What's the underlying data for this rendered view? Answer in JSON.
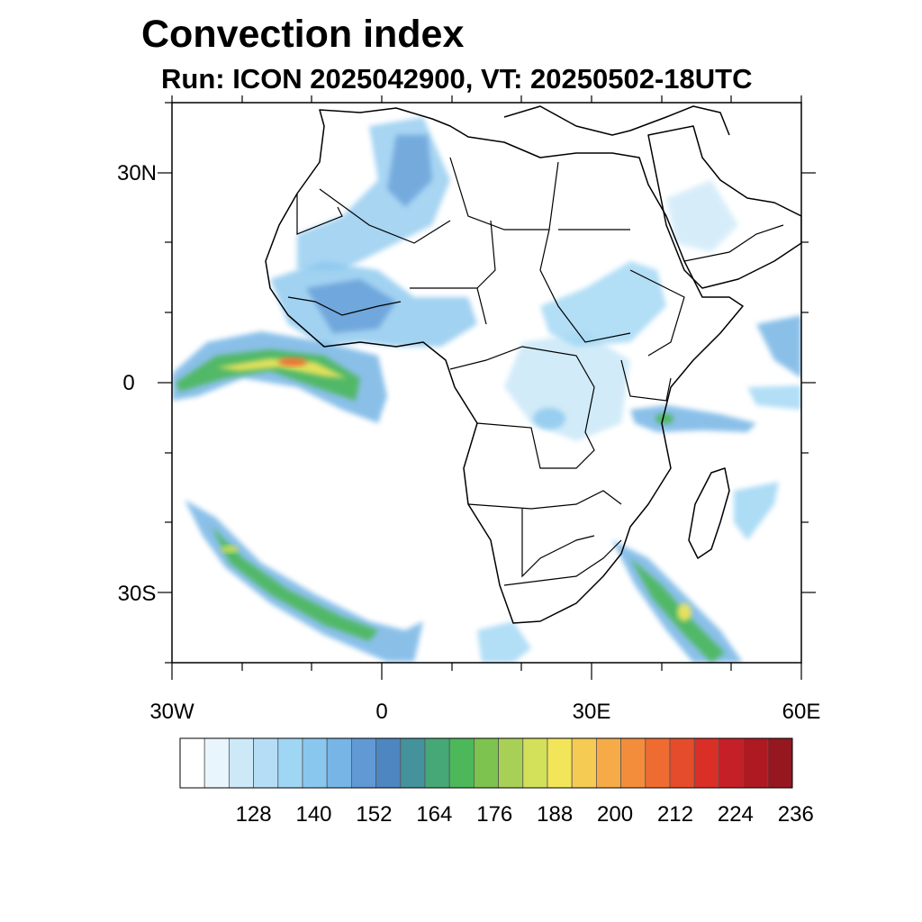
{
  "title": "Convection index",
  "subtitle": "Run: ICON 2025042900,  VT: 20250502-18UTC",
  "map": {
    "projection": "lat-lon",
    "lon_range": [
      -30,
      60
    ],
    "lat_range": [
      -40,
      40
    ],
    "lat_ticks": [
      {
        "value": 30,
        "label": "30N"
      },
      {
        "value": 0,
        "label": "0"
      },
      {
        "value": -30,
        "label": "30S"
      }
    ],
    "lon_ticks": [
      {
        "value": -30,
        "label": "30W"
      },
      {
        "value": 0,
        "label": "0"
      },
      {
        "value": 30,
        "label": "30E"
      },
      {
        "value": 60,
        "label": "60E"
      }
    ]
  },
  "colorbar": {
    "labels": [
      "128",
      "140",
      "152",
      "164",
      "176",
      "188",
      "200",
      "212",
      "224",
      "236"
    ],
    "colors": [
      "#ffffff",
      "#e8f5fc",
      "#cde9f8",
      "#b5def6",
      "#9fd6f4",
      "#8ac7ee",
      "#76b5e5",
      "#6199d5",
      "#4d86c0",
      "#43929c",
      "#46a877",
      "#4cb85a",
      "#7dc34f",
      "#a8d056",
      "#d3e05a",
      "#f2e55a",
      "#f6cb53",
      "#f6ab48",
      "#f38d3c",
      "#ee6c31",
      "#e54c2b",
      "#da2f27",
      "#c51f27",
      "#ad1a22",
      "#951820"
    ]
  }
}
